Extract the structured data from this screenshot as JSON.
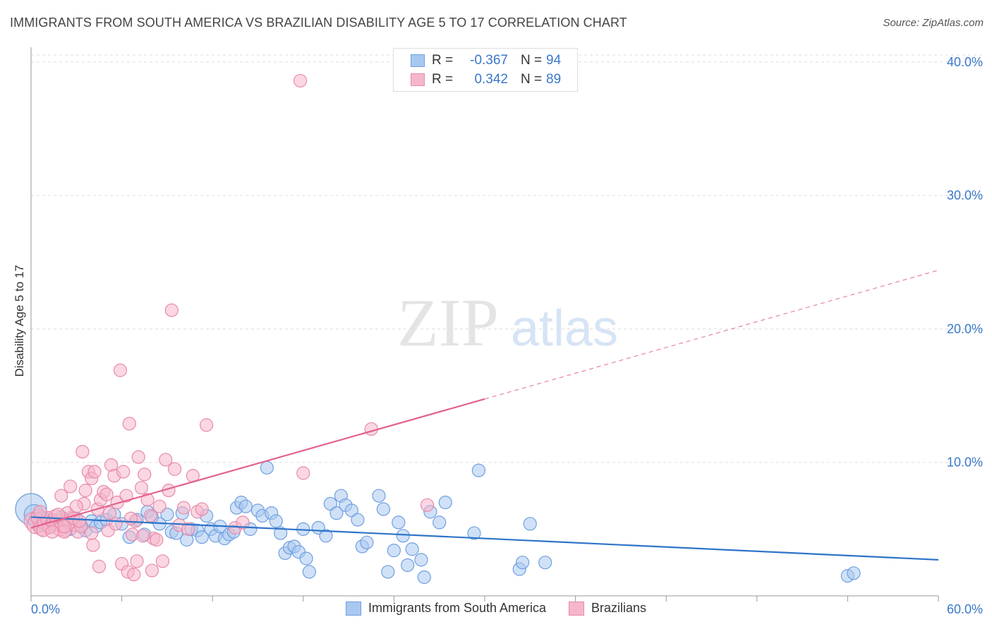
{
  "header": {
    "title": "IMMIGRANTS FROM SOUTH AMERICA VS BRAZILIAN DISABILITY AGE 5 TO 17 CORRELATION CHART",
    "source": "Source: ZipAtlas.com"
  },
  "legend": {
    "r_label": "R =",
    "n_label": "N =",
    "rows": [
      {
        "r": "-0.367",
        "n": "94"
      },
      {
        "r": "0.342",
        "n": "89"
      }
    ]
  },
  "watermark": {
    "zip": "ZIP",
    "atlas": "atlas"
  },
  "colors": {
    "blue_fill": "#a9c8f0",
    "blue_stroke": "#6f9fe0",
    "blue_line": "#2f74c8",
    "pink_fill": "#f5b6cb",
    "pink_stroke": "#e88aaa",
    "pink_line": "#e3628f",
    "tick_text": "#3a78c9",
    "grid": "#dddddd"
  },
  "chart_data": {
    "type": "scatter",
    "title": "IMMIGRANTS FROM SOUTH AMERICA VS BRAZILIAN DISABILITY AGE 5 TO 17 CORRELATION CHART",
    "xlabel": "",
    "ylabel": "Disability Age 5 to 17",
    "xlim": [
      0,
      60
    ],
    "ylim": [
      0,
      41
    ],
    "x_tick_labels": [
      "0.0%",
      "60.0%"
    ],
    "y_ticks": [
      10,
      20,
      30,
      40
    ],
    "y_tick_labels": [
      "10.0%",
      "20.0%",
      "30.0%",
      "40.0%"
    ],
    "grid": true,
    "series": [
      {
        "name": "Immigrants from South America",
        "color": "#6f9fe0",
        "r": -0.367,
        "n": 94,
        "trend": {
          "x0": 0,
          "y0": 5.9,
          "x1": 60,
          "y1": 2.7,
          "dashed_from": null
        },
        "points": [
          [
            0.0,
            6.5,
            22
          ],
          [
            0.2,
            6.1,
            14
          ],
          [
            0.4,
            5.6,
            12
          ],
          [
            0.6,
            5.3,
            10
          ],
          [
            0.8,
            5.8,
            10
          ],
          [
            1.0,
            5.5,
            10
          ],
          [
            1.2,
            5.2,
            10
          ],
          [
            1.5,
            5.6,
            9
          ],
          [
            1.8,
            5.4,
            9
          ],
          [
            2.0,
            5.9,
            9
          ],
          [
            2.3,
            5.7,
            9
          ],
          [
            2.6,
            5.0,
            9
          ],
          [
            3.0,
            5.8,
            9
          ],
          [
            3.3,
            5.3,
            9
          ],
          [
            3.6,
            4.9,
            9
          ],
          [
            4.0,
            5.6,
            9
          ],
          [
            4.3,
            5.2,
            9
          ],
          [
            4.6,
            5.5,
            9
          ],
          [
            5.0,
            5.7,
            9
          ],
          [
            5.5,
            6.1,
            9
          ],
          [
            6.0,
            5.4,
            9
          ],
          [
            6.5,
            4.4,
            9
          ],
          [
            7.0,
            5.7,
            9
          ],
          [
            7.5,
            4.6,
            9
          ],
          [
            7.7,
            6.3,
            9
          ],
          [
            8.0,
            5.9,
            9
          ],
          [
            8.5,
            5.4,
            9
          ],
          [
            9.0,
            6.1,
            9
          ],
          [
            9.3,
            4.8,
            9
          ],
          [
            9.6,
            4.7,
            9
          ],
          [
            10.0,
            6.2,
            9
          ],
          [
            10.3,
            4.2,
            9
          ],
          [
            10.6,
            5.0,
            9
          ],
          [
            11.0,
            4.9,
            9
          ],
          [
            11.3,
            4.4,
            9
          ],
          [
            11.6,
            6.0,
            9
          ],
          [
            11.9,
            5.0,
            9
          ],
          [
            12.2,
            4.5,
            9
          ],
          [
            12.5,
            5.2,
            9
          ],
          [
            12.8,
            4.3,
            9
          ],
          [
            13.1,
            4.6,
            9
          ],
          [
            13.4,
            4.8,
            9
          ],
          [
            13.6,
            6.6,
            9
          ],
          [
            13.9,
            7.0,
            9
          ],
          [
            14.2,
            6.7,
            9
          ],
          [
            14.5,
            5.0,
            9
          ],
          [
            15.0,
            6.4,
            9
          ],
          [
            15.3,
            6.0,
            9
          ],
          [
            15.6,
            9.6,
            9
          ],
          [
            15.9,
            6.2,
            9
          ],
          [
            16.2,
            5.6,
            9
          ],
          [
            16.5,
            4.7,
            9
          ],
          [
            16.8,
            3.2,
            9
          ],
          [
            17.1,
            3.6,
            9
          ],
          [
            17.4,
            3.7,
            9
          ],
          [
            17.7,
            3.3,
            9
          ],
          [
            18.0,
            5.0,
            9
          ],
          [
            18.2,
            2.8,
            9
          ],
          [
            18.4,
            1.8,
            9
          ],
          [
            19.0,
            5.1,
            9
          ],
          [
            19.5,
            4.5,
            9
          ],
          [
            19.8,
            6.9,
            9
          ],
          [
            20.2,
            6.2,
            9
          ],
          [
            20.5,
            7.5,
            9
          ],
          [
            20.8,
            6.8,
            9
          ],
          [
            21.2,
            6.4,
            9
          ],
          [
            21.6,
            5.7,
            9
          ],
          [
            21.9,
            3.7,
            9
          ],
          [
            22.2,
            4.0,
            9
          ],
          [
            23.0,
            7.5,
            9
          ],
          [
            23.3,
            6.5,
            9
          ],
          [
            23.6,
            1.8,
            9
          ],
          [
            24.0,
            3.4,
            9
          ],
          [
            24.3,
            5.5,
            9
          ],
          [
            24.6,
            4.5,
            9
          ],
          [
            24.9,
            2.3,
            9
          ],
          [
            25.2,
            3.5,
            9
          ],
          [
            25.8,
            2.7,
            9
          ],
          [
            26.0,
            1.4,
            9
          ],
          [
            26.4,
            6.3,
            9
          ],
          [
            27.0,
            5.5,
            9
          ],
          [
            27.4,
            7.0,
            9
          ],
          [
            29.3,
            4.7,
            9
          ],
          [
            29.6,
            9.4,
            9
          ],
          [
            32.3,
            2.0,
            9
          ],
          [
            32.5,
            2.5,
            9
          ],
          [
            33.0,
            5.4,
            9
          ],
          [
            34.0,
            2.5,
            9
          ],
          [
            54.0,
            1.5,
            9
          ],
          [
            54.4,
            1.7,
            9
          ]
        ]
      },
      {
        "name": "Brazilians",
        "color": "#e88aaa",
        "r": 0.342,
        "n": 89,
        "trend": {
          "x0": 0,
          "y0": 5.1,
          "x1": 60,
          "y1": 24.4,
          "dashed_from": 30
        },
        "points": [
          [
            0.1,
            5.6,
            12
          ],
          [
            0.3,
            5.3,
            12
          ],
          [
            0.5,
            5.9,
            11
          ],
          [
            0.7,
            5.1,
            11
          ],
          [
            0.9,
            5.5,
            10
          ],
          [
            1.1,
            5.8,
            10
          ],
          [
            1.3,
            5.2,
            10
          ],
          [
            1.5,
            5.6,
            10
          ],
          [
            1.7,
            5.4,
            10
          ],
          [
            1.9,
            5.0,
            10
          ],
          [
            2.1,
            5.7,
            9
          ],
          [
            2.3,
            4.9,
            9
          ],
          [
            2.5,
            5.5,
            9
          ],
          [
            2.7,
            5.9,
            9
          ],
          [
            2.9,
            5.3,
            9
          ],
          [
            3.1,
            4.8,
            9
          ],
          [
            3.3,
            5.2,
            9
          ],
          [
            3.5,
            6.9,
            9
          ],
          [
            2.4,
            6.2,
            9
          ],
          [
            2.6,
            8.2,
            9
          ],
          [
            3.4,
            10.8,
            9
          ],
          [
            3.6,
            7.9,
            9
          ],
          [
            3.8,
            9.3,
            9
          ],
          [
            4.0,
            8.8,
            9
          ],
          [
            4.2,
            9.3,
            9
          ],
          [
            4.4,
            6.5,
            9
          ],
          [
            4.6,
            7.2,
            9
          ],
          [
            4.8,
            7.8,
            9
          ],
          [
            5.0,
            7.6,
            9
          ],
          [
            5.1,
            4.9,
            9
          ],
          [
            5.3,
            9.8,
            9
          ],
          [
            5.5,
            9.0,
            9
          ],
          [
            5.7,
            7.0,
            9
          ],
          [
            5.9,
            16.9,
            9
          ],
          [
            6.1,
            9.3,
            9
          ],
          [
            6.3,
            7.5,
            9
          ],
          [
            6.5,
            12.9,
            9
          ],
          [
            6.7,
            4.6,
            9
          ],
          [
            6.9,
            5.6,
            9
          ],
          [
            7.1,
            10.4,
            9
          ],
          [
            7.3,
            8.1,
            9
          ],
          [
            7.5,
            9.1,
            9
          ],
          [
            7.7,
            7.2,
            9
          ],
          [
            7.9,
            6.0,
            9
          ],
          [
            8.1,
            4.3,
            9
          ],
          [
            8.3,
            4.2,
            9
          ],
          [
            8.5,
            6.7,
            9
          ],
          [
            8.7,
            2.6,
            9
          ],
          [
            8.9,
            10.2,
            9
          ],
          [
            9.1,
            7.9,
            9
          ],
          [
            9.3,
            21.4,
            9
          ],
          [
            9.5,
            9.5,
            9
          ],
          [
            9.8,
            5.3,
            9
          ],
          [
            10.1,
            6.6,
            9
          ],
          [
            10.4,
            5.0,
            9
          ],
          [
            10.7,
            9.0,
            9
          ],
          [
            11.0,
            6.3,
            9
          ],
          [
            11.3,
            6.5,
            9
          ],
          [
            11.6,
            12.8,
            9
          ],
          [
            13.5,
            5.1,
            9
          ],
          [
            14.0,
            5.5,
            9
          ],
          [
            17.8,
            38.6,
            9
          ],
          [
            18.0,
            9.2,
            9
          ],
          [
            22.5,
            12.5,
            9
          ],
          [
            26.2,
            6.8,
            9
          ],
          [
            2.0,
            7.5,
            9
          ],
          [
            3.0,
            6.7,
            9
          ],
          [
            4.0,
            4.7,
            9
          ],
          [
            5.2,
            6.2,
            9
          ],
          [
            4.1,
            3.8,
            9
          ],
          [
            4.5,
            2.2,
            9
          ],
          [
            6.0,
            2.4,
            9
          ],
          [
            6.4,
            1.8,
            9
          ],
          [
            6.8,
            1.6,
            9
          ],
          [
            7.0,
            2.6,
            9
          ],
          [
            7.4,
            4.5,
            9
          ],
          [
            8.0,
            1.9,
            9
          ],
          [
            2.2,
            4.8,
            9
          ],
          [
            2.8,
            5.8,
            9
          ],
          [
            1.6,
            6.0,
            9
          ],
          [
            1.2,
            5.1,
            9
          ],
          [
            0.6,
            6.3,
            9
          ],
          [
            0.8,
            4.9,
            9
          ],
          [
            1.4,
            4.8,
            9
          ],
          [
            1.8,
            6.1,
            9
          ],
          [
            2.2,
            5.2,
            9
          ],
          [
            3.2,
            5.6,
            9
          ],
          [
            5.6,
            5.4,
            9
          ],
          [
            6.6,
            5.8,
            9
          ]
        ]
      }
    ]
  },
  "bottom_legend": {
    "items": [
      {
        "label": "Immigrants from South America"
      },
      {
        "label": "Brazilians"
      }
    ]
  }
}
